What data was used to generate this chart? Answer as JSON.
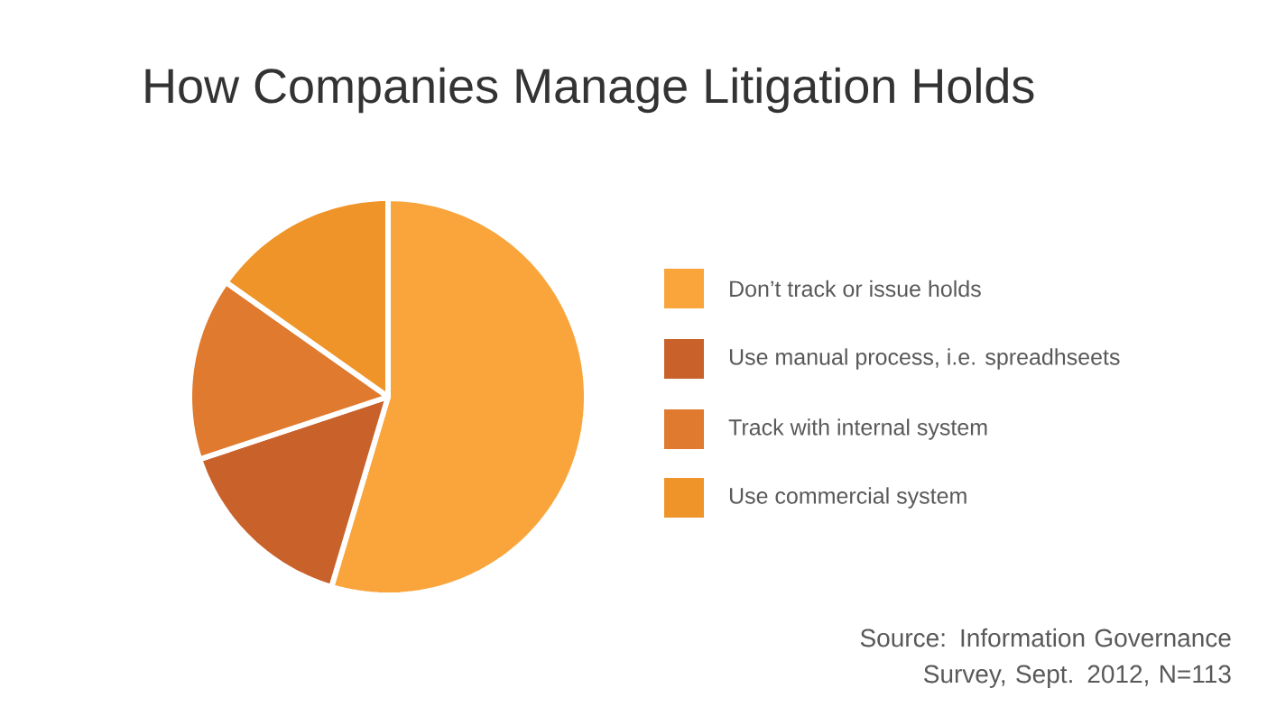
{
  "chart_data": {
    "type": "pie",
    "title": "How Companies Manage Litigation Holds",
    "categories": [
      "Don’t track or issue holds",
      "Use manual process, i.e. spreadhseets",
      "Track with internal system",
      "Use commercial system"
    ],
    "values": [
      54.6,
      15.3,
      14.9,
      15.2
    ],
    "colors": [
      "#f9a53c",
      "#c9622a",
      "#df7a2e",
      "#ef9428"
    ],
    "legend": "right",
    "annotations": [
      "Source: Information Governance Survey, Sept. 2012, N=113"
    ]
  }
}
